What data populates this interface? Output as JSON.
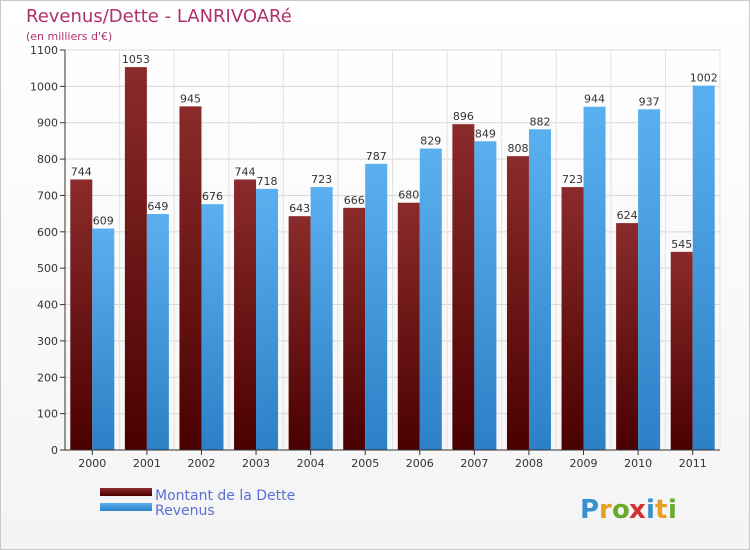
{
  "chart_data": {
    "type": "bar",
    "title": "Revenus/Dette - LANRIVOARé",
    "subtitle": "(en milliers d'€)",
    "categories": [
      "2000",
      "2001",
      "2002",
      "2003",
      "2004",
      "2005",
      "2006",
      "2007",
      "2008",
      "2009",
      "2010",
      "2011"
    ],
    "series": [
      {
        "name": "Montant de la Dette",
        "color": "#7a1a1a",
        "values": [
          744,
          1053,
          945,
          744,
          643,
          666,
          680,
          896,
          808,
          723,
          624,
          545
        ]
      },
      {
        "name": "Revenus",
        "color": "#4aa3e6",
        "values": [
          609,
          649,
          676,
          718,
          723,
          787,
          829,
          849,
          882,
          944,
          937,
          1002
        ]
      }
    ],
    "ylim": [
      0,
      1100
    ],
    "yticks": [
      0,
      100,
      200,
      300,
      400,
      500,
      600,
      700,
      800,
      900,
      1000,
      1100
    ],
    "grid": true,
    "legend_position": "bottom-left"
  },
  "logo": {
    "text": "Proxiti",
    "icon": "proxiti-logo"
  }
}
